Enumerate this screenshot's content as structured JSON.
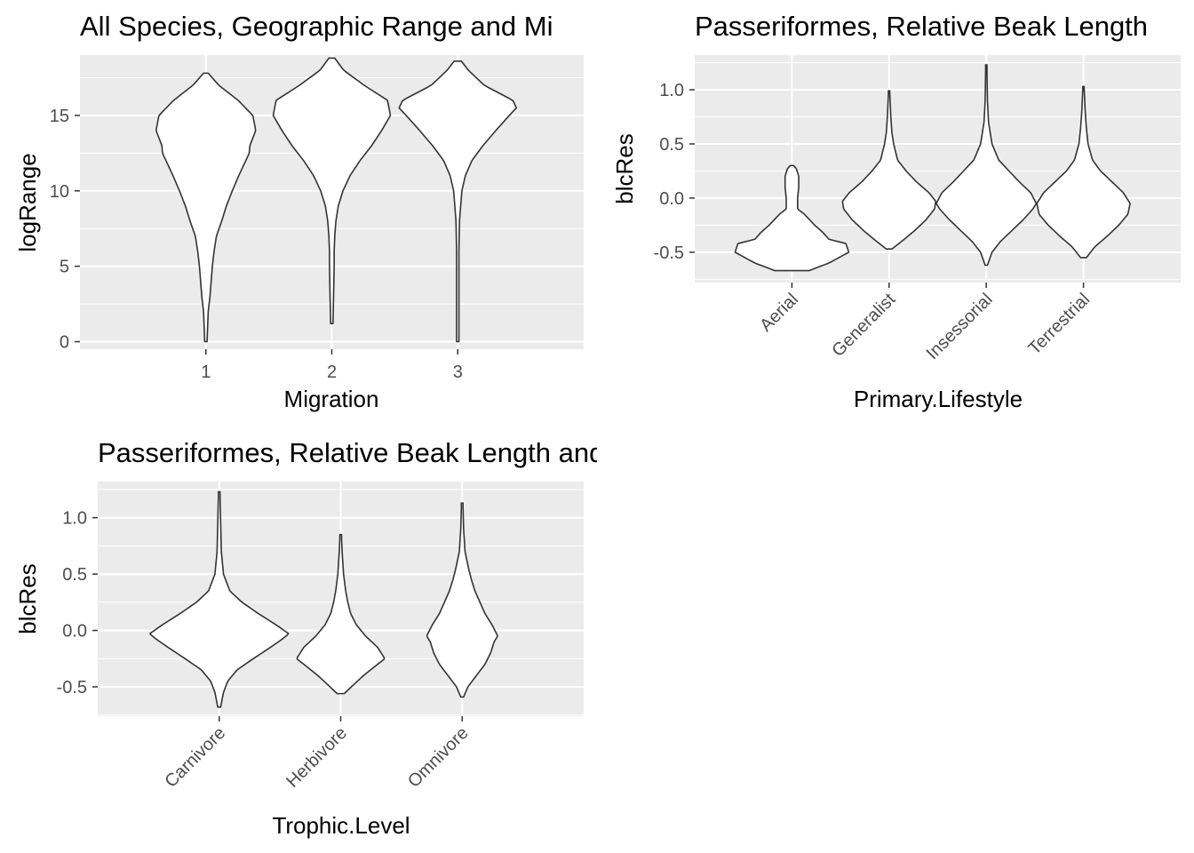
{
  "chart_data": [
    {
      "type": "violin",
      "title": "All Species, Geographic Range and Mi",
      "xlabel": "Migration",
      "ylabel": "logRange",
      "categories": [
        "1",
        "2",
        "3"
      ],
      "yticks": [
        0,
        5,
        10,
        15
      ],
      "ylim": [
        -0.5,
        19
      ],
      "grid": true,
      "colors": {
        "panel": "#ebebeb",
        "grid": "#ffffff",
        "violin_fill": "#ffffff",
        "violin_stroke": "#333333"
      },
      "series": [
        {
          "category": "1",
          "y_min": 0,
          "y_max": 17.8,
          "profile": [
            [
              0,
              0.02
            ],
            [
              1,
              0.03
            ],
            [
              2,
              0.04
            ],
            [
              3,
              0.07
            ],
            [
              4,
              0.09
            ],
            [
              5,
              0.11
            ],
            [
              6,
              0.14
            ],
            [
              7,
              0.18
            ],
            [
              8,
              0.27
            ],
            [
              9,
              0.35
            ],
            [
              10,
              0.45
            ],
            [
              11,
              0.56
            ],
            [
              12,
              0.68
            ],
            [
              12.5,
              0.74
            ],
            [
              13,
              0.75
            ],
            [
              13.5,
              0.8
            ],
            [
              14,
              0.85
            ],
            [
              15,
              0.8
            ],
            [
              16,
              0.55
            ],
            [
              17,
              0.22
            ],
            [
              17.8,
              0.04
            ]
          ]
        },
        {
          "category": "2",
          "y_min": 1.2,
          "y_max": 18.8,
          "profile": [
            [
              1.2,
              0.02
            ],
            [
              3,
              0.03
            ],
            [
              5,
              0.04
            ],
            [
              6,
              0.04
            ],
            [
              7,
              0.05
            ],
            [
              8,
              0.07
            ],
            [
              9,
              0.11
            ],
            [
              10,
              0.19
            ],
            [
              11,
              0.31
            ],
            [
              12,
              0.48
            ],
            [
              13,
              0.68
            ],
            [
              14,
              0.85
            ],
            [
              15,
              1.0
            ],
            [
              16,
              0.95
            ],
            [
              17,
              0.55
            ],
            [
              18,
              0.2
            ],
            [
              18.8,
              0.05
            ]
          ]
        },
        {
          "category": "3",
          "y_min": 0,
          "y_max": 18.6,
          "profile": [
            [
              0,
              0.02
            ],
            [
              3,
              0.02
            ],
            [
              6,
              0.02
            ],
            [
              8,
              0.03
            ],
            [
              9,
              0.05
            ],
            [
              10,
              0.07
            ],
            [
              11,
              0.13
            ],
            [
              12,
              0.24
            ],
            [
              13,
              0.43
            ],
            [
              14,
              0.65
            ],
            [
              15,
              0.88
            ],
            [
              15.5,
              1.0
            ],
            [
              16,
              0.94
            ],
            [
              17,
              0.45
            ],
            [
              18,
              0.18
            ],
            [
              18.6,
              0.06
            ]
          ]
        }
      ]
    },
    {
      "type": "violin",
      "title": "Passeriformes, Relative Beak Length",
      "xlabel": "Primary.Lifestyle",
      "ylabel": "blcRes",
      "categories": [
        "Aerial",
        "Generalist",
        "Insessorial",
        "Terrestrial"
      ],
      "yticks": [
        -0.5,
        0.0,
        0.5,
        1.0
      ],
      "ytick_labels": [
        "-0.5",
        "0.0",
        "0.5",
        "1.0"
      ],
      "ylim": [
        -0.78,
        1.32
      ],
      "grid": true,
      "colors": {
        "panel": "#ebebeb",
        "grid": "#ffffff",
        "violin_fill": "#ffffff",
        "violin_stroke": "#333333"
      },
      "series": [
        {
          "category": "Aerial",
          "y_min": -0.67,
          "y_max": 0.3,
          "profile": [
            [
              -0.67,
              0.3
            ],
            [
              -0.6,
              0.65
            ],
            [
              -0.5,
              1.0
            ],
            [
              -0.42,
              0.95
            ],
            [
              -0.38,
              0.65
            ],
            [
              -0.32,
              0.55
            ],
            [
              -0.25,
              0.4
            ],
            [
              -0.15,
              0.22
            ],
            [
              -0.1,
              0.1
            ],
            [
              0.0,
              0.1
            ],
            [
              0.1,
              0.12
            ],
            [
              0.2,
              0.12
            ],
            [
              0.27,
              0.08
            ],
            [
              0.3,
              0.03
            ]
          ]
        },
        {
          "category": "Generalist",
          "y_min": -0.47,
          "y_max": 0.99,
          "profile": [
            [
              -0.47,
              0.05
            ],
            [
              -0.4,
              0.22
            ],
            [
              -0.3,
              0.45
            ],
            [
              -0.2,
              0.65
            ],
            [
              -0.1,
              0.8
            ],
            [
              -0.03,
              0.82
            ],
            [
              0.05,
              0.7
            ],
            [
              0.15,
              0.48
            ],
            [
              0.25,
              0.3
            ],
            [
              0.35,
              0.15
            ],
            [
              0.5,
              0.08
            ],
            [
              0.6,
              0.05
            ],
            [
              0.75,
              0.03
            ],
            [
              0.99,
              0.01
            ]
          ]
        },
        {
          "category": "Insessorial",
          "y_min": -0.62,
          "y_max": 1.23,
          "profile": [
            [
              -0.62,
              0.02
            ],
            [
              -0.5,
              0.1
            ],
            [
              -0.4,
              0.25
            ],
            [
              -0.3,
              0.45
            ],
            [
              -0.2,
              0.65
            ],
            [
              -0.1,
              0.82
            ],
            [
              -0.05,
              0.88
            ],
            [
              0.05,
              0.78
            ],
            [
              0.15,
              0.58
            ],
            [
              0.25,
              0.4
            ],
            [
              0.35,
              0.22
            ],
            [
              0.5,
              0.1
            ],
            [
              0.7,
              0.04
            ],
            [
              0.9,
              0.02
            ],
            [
              1.23,
              0.01
            ]
          ]
        },
        {
          "category": "Terrestrial",
          "y_min": -0.55,
          "y_max": 1.03,
          "profile": [
            [
              -0.55,
              0.05
            ],
            [
              -0.45,
              0.2
            ],
            [
              -0.35,
              0.42
            ],
            [
              -0.25,
              0.62
            ],
            [
              -0.15,
              0.78
            ],
            [
              -0.05,
              0.82
            ],
            [
              0.05,
              0.7
            ],
            [
              0.15,
              0.5
            ],
            [
              0.25,
              0.3
            ],
            [
              0.35,
              0.16
            ],
            [
              0.5,
              0.08
            ],
            [
              0.65,
              0.05
            ],
            [
              0.8,
              0.03
            ],
            [
              1.03,
              0.01
            ]
          ]
        }
      ]
    },
    {
      "type": "violin",
      "title": "Passeriformes, Relative Beak Length and Trophic Level",
      "xlabel": "Trophic.Level",
      "ylabel": "blcRes",
      "categories": [
        "Carnivore",
        "Herbivore",
        "Omnivore"
      ],
      "yticks": [
        -0.5,
        0.0,
        0.5,
        1.0
      ],
      "ytick_labels": [
        "-0.5",
        "0.0",
        "0.5",
        "1.0"
      ],
      "ylim": [
        -0.76,
        1.32
      ],
      "grid": true,
      "colors": {
        "panel": "#ebebeb",
        "grid": "#ffffff",
        "violin_fill": "#ffffff",
        "violin_stroke": "#333333"
      },
      "series": [
        {
          "category": "Carnivore",
          "y_min": -0.68,
          "y_max": 1.23,
          "profile": [
            [
              -0.68,
              0.02
            ],
            [
              -0.55,
              0.06
            ],
            [
              -0.45,
              0.12
            ],
            [
              -0.35,
              0.25
            ],
            [
              -0.25,
              0.48
            ],
            [
              -0.15,
              0.72
            ],
            [
              -0.08,
              0.88
            ],
            [
              -0.03,
              0.98
            ],
            [
              0.05,
              0.8
            ],
            [
              0.15,
              0.55
            ],
            [
              0.25,
              0.32
            ],
            [
              0.35,
              0.15
            ],
            [
              0.5,
              0.06
            ],
            [
              0.7,
              0.03
            ],
            [
              1.23,
              0.01
            ]
          ]
        },
        {
          "category": "Herbivore",
          "y_min": -0.56,
          "y_max": 0.85,
          "profile": [
            [
              -0.56,
              0.05
            ],
            [
              -0.5,
              0.15
            ],
            [
              -0.4,
              0.32
            ],
            [
              -0.3,
              0.52
            ],
            [
              -0.25,
              0.62
            ],
            [
              -0.15,
              0.52
            ],
            [
              -0.05,
              0.35
            ],
            [
              0.05,
              0.22
            ],
            [
              0.15,
              0.14
            ],
            [
              0.25,
              0.1
            ],
            [
              0.35,
              0.07
            ],
            [
              0.5,
              0.04
            ],
            [
              0.7,
              0.02
            ],
            [
              0.85,
              0.01
            ]
          ]
        },
        {
          "category": "Omnivore",
          "y_min": -0.59,
          "y_max": 1.13,
          "profile": [
            [
              -0.59,
              0.02
            ],
            [
              -0.5,
              0.08
            ],
            [
              -0.4,
              0.2
            ],
            [
              -0.3,
              0.32
            ],
            [
              -0.2,
              0.4
            ],
            [
              -0.1,
              0.45
            ],
            [
              -0.05,
              0.5
            ],
            [
              0.05,
              0.42
            ],
            [
              0.15,
              0.32
            ],
            [
              0.25,
              0.25
            ],
            [
              0.35,
              0.18
            ],
            [
              0.45,
              0.13
            ],
            [
              0.55,
              0.09
            ],
            [
              0.7,
              0.04
            ],
            [
              0.9,
              0.02
            ],
            [
              1.13,
              0.01
            ]
          ]
        }
      ]
    }
  ]
}
